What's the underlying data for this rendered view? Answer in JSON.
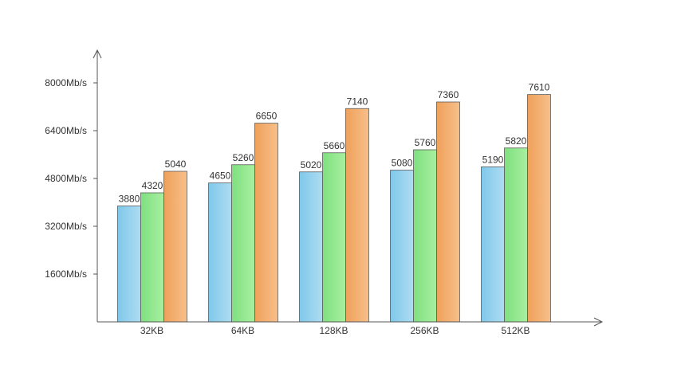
{
  "chart_data": {
    "type": "bar",
    "categories": [
      "32KB",
      "64KB",
      "128KB",
      "256KB",
      "512KB"
    ],
    "series": [
      {
        "values": [
          3880,
          4650,
          5020,
          5080,
          5190
        ],
        "color": "#87ceeb"
      },
      {
        "values": [
          4320,
          5260,
          5660,
          5760,
          5820
        ],
        "color": "#90ee90"
      },
      {
        "values": [
          5040,
          6650,
          7140,
          7360,
          7610
        ],
        "color": "#f4a460"
      }
    ],
    "title": "",
    "xlabel": "",
    "ylabel": "",
    "ylim": [
      0,
      8000
    ],
    "yticks": [
      {
        "value": 1600,
        "label": "1600Mb/s"
      },
      {
        "value": 3200,
        "label": "3200Mb/s"
      },
      {
        "value": 4800,
        "label": "4800Mb/s"
      },
      {
        "value": 6400,
        "label": "6400Mb/s"
      },
      {
        "value": 8000,
        "label": "8000Mb/s"
      }
    ],
    "grid": false,
    "legend": "none",
    "data_labels": true
  }
}
